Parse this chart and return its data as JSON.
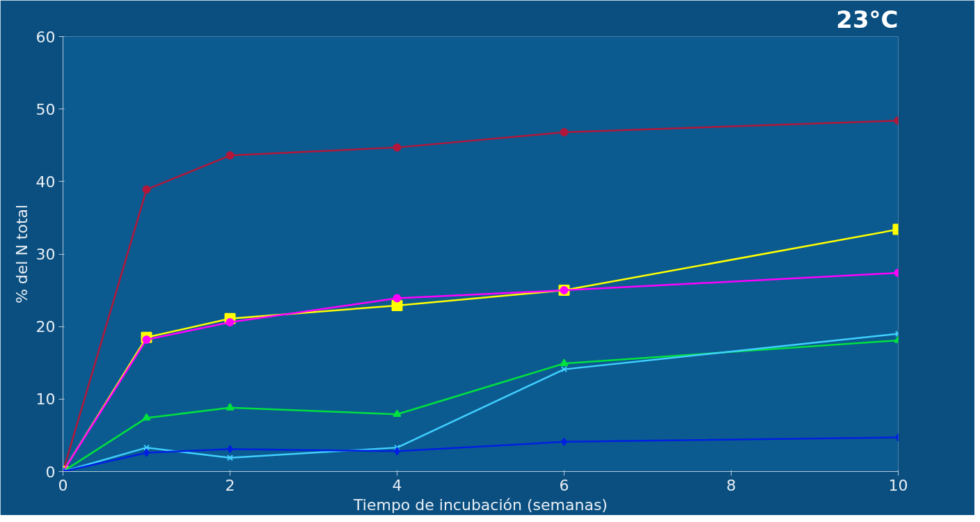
{
  "chart_data": {
    "type": "line",
    "xlabel": "Tiempo de incubación (semanas)",
    "ylabel": "% del N total",
    "annotations": [
      "23°C"
    ],
    "x": [
      0,
      1,
      2,
      4,
      6,
      10
    ],
    "xlim": [
      0,
      10
    ],
    "xticks": [
      0,
      2,
      4,
      6,
      8,
      10
    ],
    "ylim": [
      0,
      60
    ],
    "yticks": [
      0,
      10,
      20,
      30,
      40,
      50,
      60
    ],
    "grid": false,
    "series": [
      {
        "color": "#b0173a",
        "marker": "circle",
        "values": [
          0,
          38.9,
          43.6,
          44.7,
          46.8,
          48.4
        ]
      },
      {
        "color": "#ffff00",
        "marker": "square",
        "values": [
          0,
          18.5,
          21.1,
          22.9,
          25.0,
          33.4
        ]
      },
      {
        "color": "#ff00ff",
        "marker": "circle",
        "values": [
          0,
          18.2,
          20.6,
          23.9,
          25.0,
          27.4
        ]
      },
      {
        "color": "#00e040",
        "marker": "triangle",
        "values": [
          0,
          7.4,
          8.8,
          7.9,
          14.9,
          18.1
        ]
      },
      {
        "color": "#40d0ff",
        "marker": "cross",
        "values": [
          0,
          3.3,
          1.9,
          3.3,
          14.1,
          19.0
        ]
      },
      {
        "color": "#0020e0",
        "marker": "diamond",
        "values": [
          0,
          2.6,
          3.1,
          2.8,
          4.1,
          4.7
        ]
      }
    ]
  }
}
